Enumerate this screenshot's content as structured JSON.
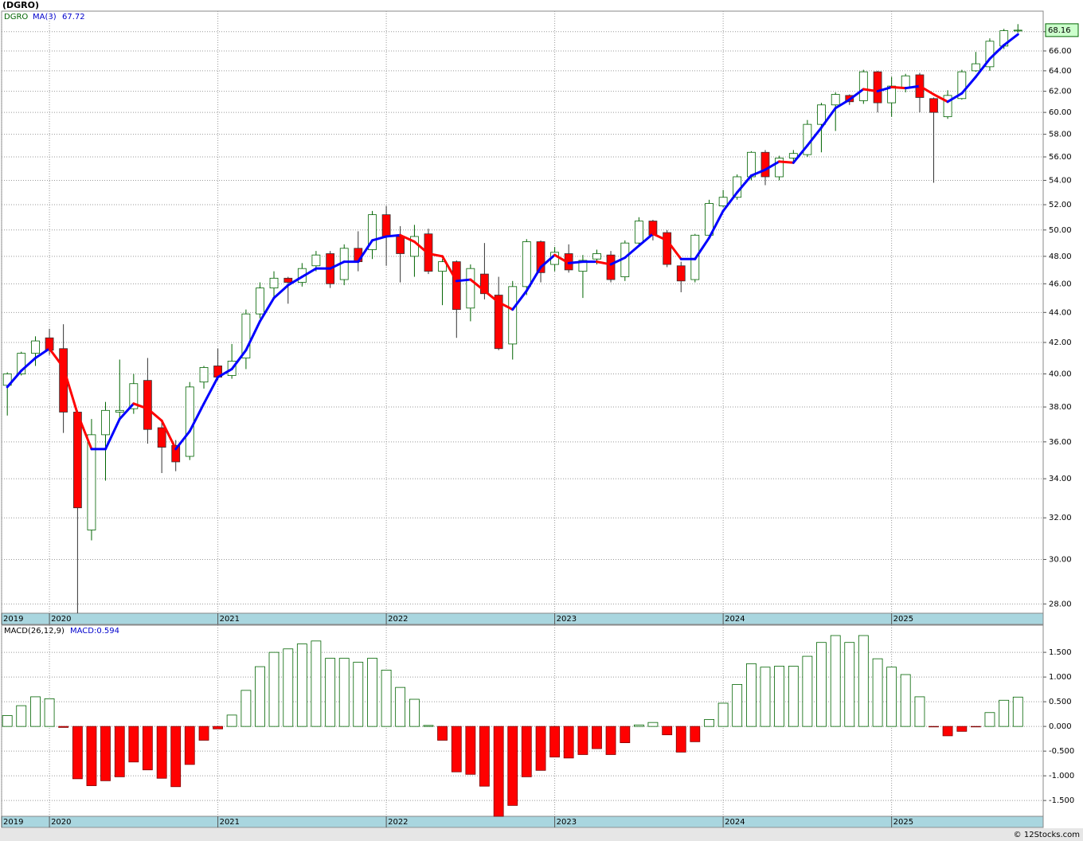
{
  "chart_data": [
    {
      "type": "candlestick",
      "title": "(DGRO)",
      "symbol": "DGRO",
      "log_scale": true,
      "grid": true,
      "up_color": "#006400",
      "down_color": "#ff0000",
      "x": [
        2019.75,
        2019.833,
        2019.917,
        2020,
        2020.083,
        2020.167,
        2020.25,
        2020.333,
        2020.417,
        2020.5,
        2020.583,
        2020.667,
        2020.75,
        2020.833,
        2020.917,
        2021,
        2021.083,
        2021.167,
        2021.25,
        2021.333,
        2021.417,
        2021.5,
        2021.583,
        2021.667,
        2021.75,
        2021.833,
        2021.917,
        2022,
        2022.083,
        2022.167,
        2022.25,
        2022.333,
        2022.417,
        2022.5,
        2022.583,
        2022.667,
        2022.75,
        2022.833,
        2022.917,
        2023,
        2023.083,
        2023.167,
        2023.25,
        2023.333,
        2023.417,
        2023.5,
        2023.583,
        2023.667,
        2023.75,
        2023.833,
        2023.917,
        2024,
        2024.083,
        2024.167,
        2024.25,
        2024.333,
        2024.417,
        2024.5,
        2024.583,
        2024.667,
        2024.75,
        2024.833,
        2024.917,
        2025,
        2025.083,
        2025.167,
        2025.25,
        2025.333,
        2025.417,
        2025.5,
        2025.583,
        2025.667,
        2025.75
      ],
      "open": [
        39.3,
        40.0,
        41.3,
        42.3,
        41.6,
        37.7,
        31.4,
        36.4,
        37.7,
        37.9,
        39.6,
        36.8,
        35.8,
        35.2,
        39.5,
        40.5,
        39.9,
        41.0,
        43.9,
        45.7,
        46.4,
        46.1,
        47.3,
        48.2,
        46.3,
        48.6,
        48.5,
        51.2,
        49.5,
        48.0,
        49.7,
        46.9,
        47.6,
        44.3,
        46.7,
        45.2,
        41.9,
        45.8,
        49.1,
        47.4,
        48.2,
        46.9,
        47.8,
        48.1,
        46.5,
        49.0,
        50.7,
        49.8,
        47.3,
        46.3,
        49.6,
        51.9,
        52.6,
        54.3,
        56.4,
        54.3,
        55.9,
        56.2,
        58.9,
        60.7,
        61.6,
        61.1,
        63.9,
        60.9,
        62.4,
        63.6,
        61.3,
        59.6,
        61.3,
        64.0,
        64.4,
        66.5,
        68.1
      ],
      "high": [
        40.1,
        41.4,
        42.4,
        42.9,
        43.2,
        37.8,
        37.3,
        38.3,
        40.9,
        40.0,
        41.0,
        37.2,
        36.1,
        39.5,
        40.5,
        41.6,
        41.9,
        44.2,
        46.1,
        46.9,
        46.5,
        47.5,
        48.4,
        48.4,
        48.9,
        49.9,
        51.5,
        51.9,
        50.3,
        50.4,
        50.1,
        47.8,
        47.7,
        47.4,
        49.0,
        46.5,
        46.2,
        49.3,
        49.2,
        48.7,
        48.9,
        48.1,
        48.5,
        48.4,
        49.2,
        51.0,
        50.8,
        50.0,
        47.6,
        49.7,
        52.4,
        53.2,
        54.5,
        56.5,
        56.6,
        56.1,
        56.6,
        59.3,
        60.9,
        61.9,
        61.7,
        64.1,
        64.0,
        63.4,
        63.7,
        63.8,
        61.4,
        62.1,
        64.1,
        65.9,
        67.3,
        68.3,
        68.8
      ],
      "low": [
        37.5,
        39.9,
        40.5,
        41.2,
        36.5,
        27.6,
        30.9,
        33.9,
        37.3,
        37.6,
        35.9,
        34.3,
        34.4,
        35.0,
        39.1,
        39.6,
        39.7,
        40.3,
        43.6,
        45.0,
        44.6,
        45.8,
        46.9,
        45.7,
        45.9,
        46.9,
        47.8,
        47.3,
        46.1,
        46.5,
        46.7,
        44.5,
        42.3,
        43.4,
        44.9,
        41.5,
        40.9,
        45.2,
        46.1,
        46.9,
        46.8,
        45.0,
        47.4,
        46.1,
        46.2,
        48.8,
        49.2,
        47.2,
        45.4,
        46.1,
        49.4,
        51.8,
        52.4,
        54.0,
        53.6,
        54.0,
        55.4,
        56.0,
        56.4,
        58.3,
        60.7,
        60.8,
        60.0,
        59.6,
        61.9,
        60.0,
        53.8,
        59.4,
        61.2,
        63.9,
        64.0,
        66.2,
        67.9
      ],
      "close": [
        40.0,
        41.3,
        42.1,
        41.5,
        37.7,
        32.5,
        36.4,
        37.8,
        37.8,
        39.4,
        36.7,
        35.7,
        34.9,
        39.2,
        40.4,
        39.8,
        40.8,
        43.9,
        45.7,
        46.4,
        46.1,
        47.1,
        48.1,
        46.0,
        48.6,
        47.6,
        51.2,
        49.5,
        48.2,
        49.5,
        46.9,
        47.6,
        44.2,
        47.1,
        45.3,
        41.6,
        45.8,
        49.1,
        46.8,
        48.3,
        47.0,
        47.7,
        48.2,
        46.3,
        49.0,
        50.7,
        49.6,
        47.4,
        46.2,
        49.6,
        52.1,
        52.6,
        54.3,
        56.4,
        54.3,
        55.9,
        56.3,
        58.9,
        60.7,
        61.7,
        61.0,
        63.9,
        60.9,
        62.5,
        63.5,
        61.4,
        60.0,
        61.6,
        63.9,
        64.7,
        67.0,
        68.1,
        68.16
      ],
      "series": [
        {
          "name": "MA(3)",
          "color": "#0000ff",
          "down_color": "#ff0000",
          "values": [
            39.2,
            40.2,
            41.0,
            41.6,
            40.4,
            37.6,
            35.6,
            35.6,
            37.3,
            38.2,
            37.9,
            37.2,
            35.6,
            36.6,
            38.2,
            39.8,
            40.3,
            41.5,
            43.4,
            45.0,
            45.9,
            46.5,
            47.1,
            47.1,
            47.6,
            47.6,
            49.2,
            49.5,
            49.6,
            49.1,
            48.2,
            48.0,
            46.2,
            46.3,
            45.5,
            44.7,
            44.2,
            45.5,
            47.2,
            48.1,
            47.5,
            47.6,
            47.6,
            47.4,
            47.9,
            48.8,
            49.7,
            49.2,
            47.8,
            47.8,
            49.4,
            51.5,
            53.0,
            54.4,
            54.9,
            55.6,
            55.5,
            57.0,
            58.6,
            60.4,
            61.2,
            62.2,
            62.0,
            62.4,
            62.3,
            62.5,
            61.7,
            61.0,
            61.8,
            63.4,
            65.2,
            66.6,
            67.72
          ]
        }
      ],
      "xlim": [
        2019.716,
        2025.9
      ],
      "xticks": [
        {
          "value": 2019.716,
          "label": "2019"
        },
        2020,
        2021,
        2022,
        2023,
        2024,
        2025
      ],
      "ylim": [
        27.6,
        70.2
      ],
      "yticks": [
        {
          "value": 28,
          "label": "28.00"
        },
        {
          "value": 30,
          "label": "30.00"
        },
        {
          "value": 32,
          "label": "32.00"
        },
        {
          "value": 34,
          "label": "34.00"
        },
        {
          "value": 36,
          "label": "36.00"
        },
        {
          "value": 38,
          "label": "38.00"
        },
        {
          "value": 40,
          "label": "40.00"
        },
        {
          "value": 42,
          "label": "42.00"
        },
        {
          "value": 44,
          "label": "44.00"
        },
        {
          "value": 46,
          "label": "46.00"
        },
        {
          "value": 48,
          "label": "48.00"
        },
        {
          "value": 50,
          "label": "50.00"
        },
        {
          "value": 52,
          "label": "52.00"
        },
        {
          "value": 54,
          "label": "54.00"
        },
        {
          "value": 56,
          "label": "56.00"
        },
        {
          "value": 58,
          "label": "58.00"
        },
        {
          "value": 60,
          "label": "60.00"
        },
        {
          "value": 62,
          "label": "62.00"
        },
        {
          "value": 64,
          "label": "64.00"
        },
        {
          "value": 66,
          "label": "66.00"
        },
        {
          "value": 68,
          "label": "68.00"
        }
      ]
    },
    {
      "type": "bar",
      "legend": "MACD(26,12,9)",
      "last_label": "MACD:0.594",
      "up_color": "#006400",
      "down_color": "#ff0000",
      "grid": true,
      "values": [
        0.22,
        0.42,
        0.6,
        0.56,
        -0.02,
        -1.06,
        -1.2,
        -1.1,
        -1.02,
        -0.72,
        -0.88,
        -1.05,
        -1.22,
        -0.77,
        -0.28,
        -0.05,
        0.23,
        0.73,
        1.21,
        1.5,
        1.57,
        1.67,
        1.73,
        1.38,
        1.38,
        1.3,
        1.38,
        1.14,
        0.79,
        0.55,
        0.02,
        -0.28,
        -0.92,
        -0.97,
        -1.21,
        -1.82,
        -1.6,
        -1.02,
        -0.89,
        -0.62,
        -0.64,
        -0.57,
        -0.45,
        -0.57,
        -0.33,
        0.03,
        0.08,
        -0.17,
        -0.52,
        -0.31,
        0.14,
        0.47,
        0.85,
        1.27,
        1.2,
        1.22,
        1.22,
        1.42,
        1.7,
        1.84,
        1.7,
        1.84,
        1.37,
        1.2,
        1.05,
        0.6,
        -0.01,
        -0.19,
        -0.1,
        -0.01,
        0.28,
        0.53,
        0.594
      ],
      "ylim": [
        -1.82,
        2.05
      ],
      "yticks": [
        {
          "value": -1.5,
          "label": "-1.500"
        },
        {
          "value": -1,
          "label": "-1.000"
        },
        {
          "value": -0.5,
          "label": "-0.500"
        },
        {
          "value": 0,
          "label": "0.000"
        },
        {
          "value": 0.5,
          "label": "0.500"
        },
        {
          "value": 1,
          "label": "1.000"
        },
        {
          "value": 1.5,
          "label": "1.500"
        }
      ]
    }
  ],
  "footer": "© 12Stocks.com"
}
